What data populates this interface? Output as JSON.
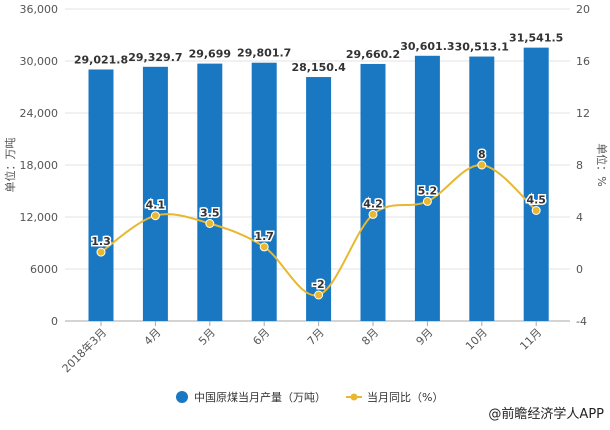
{
  "chart_data": {
    "type": "bar+line",
    "categories": [
      "2018年3月",
      "4月",
      "5月",
      "6月",
      "7月",
      "8月",
      "9月",
      "10月",
      "11月"
    ],
    "series": [
      {
        "name": "中国原煤当月产量（万吨）",
        "type": "bar",
        "axis": "left",
        "color": "#1a78c2",
        "values": [
          29021.8,
          29329.7,
          29699,
          29801.7,
          28150.4,
          29660.2,
          30601.3,
          30513.1,
          31541.5
        ],
        "labels": [
          "29,021.8",
          "29,329.7",
          "29,699",
          "29,801.7",
          "28,150.4",
          "29,660.2",
          "30,601.3",
          "30,513.1",
          "31,541.5"
        ]
      },
      {
        "name": "当月同比（%）",
        "type": "line",
        "axis": "right",
        "color": "#e8b830",
        "values": [
          1.3,
          4.1,
          3.5,
          1.7,
          -2,
          4.2,
          5.2,
          8,
          4.5
        ],
        "labels": [
          "1.3",
          "4.1",
          "3.5",
          "1.7",
          "-2",
          "4.2",
          "5.2",
          "8",
          "4.5"
        ]
      }
    ],
    "ylabel": "单位：万吨",
    "y2label": "单位：%",
    "ylim": [
      0,
      36000
    ],
    "y2lim": [
      -4,
      20
    ],
    "yticks": [
      "0",
      "6000",
      "12,000",
      "18,000",
      "24,000",
      "30,000",
      "36,000"
    ],
    "y2ticks": [
      "-4",
      "0",
      "4",
      "8",
      "12",
      "16",
      "20"
    ],
    "legend": "bottom-center",
    "grid": true
  },
  "credit": "@前瞻经济学人APP"
}
